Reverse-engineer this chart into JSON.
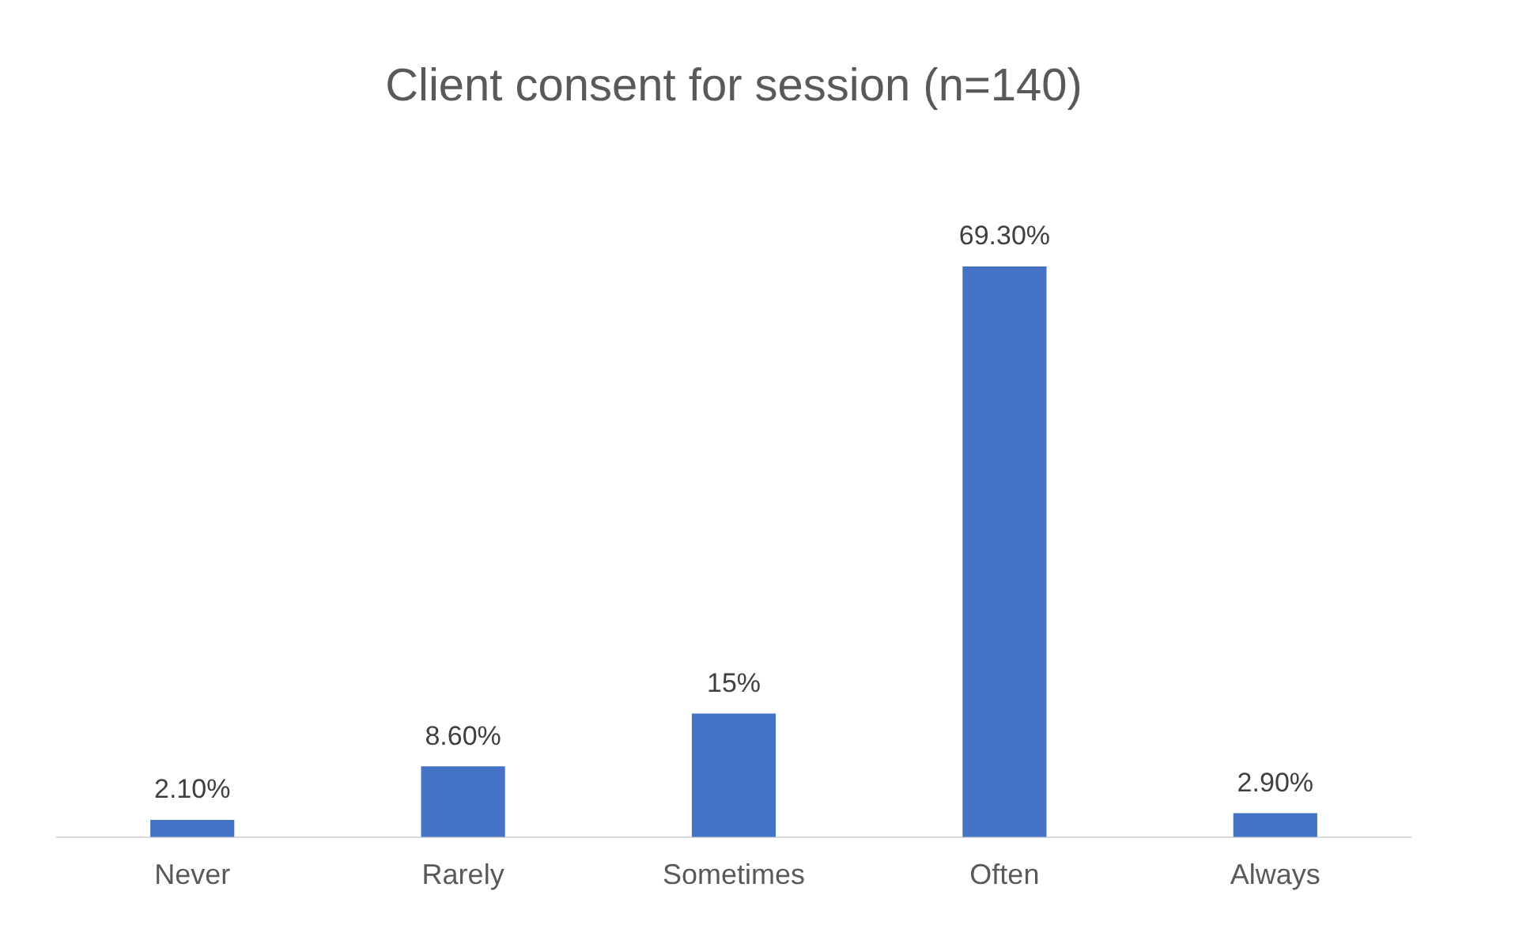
{
  "chart_data": {
    "type": "bar",
    "title": "Client consent for session (n=140)",
    "categories": [
      "Never",
      "Rarely",
      "Sometimes",
      "Often",
      "Always"
    ],
    "values": [
      2.1,
      8.6,
      15,
      69.3,
      2.9
    ],
    "value_labels": [
      "2.10%",
      "8.60%",
      "15%",
      "69.30%",
      "2.90%"
    ],
    "color": "#4472c4",
    "tick_labels": "x"
  }
}
